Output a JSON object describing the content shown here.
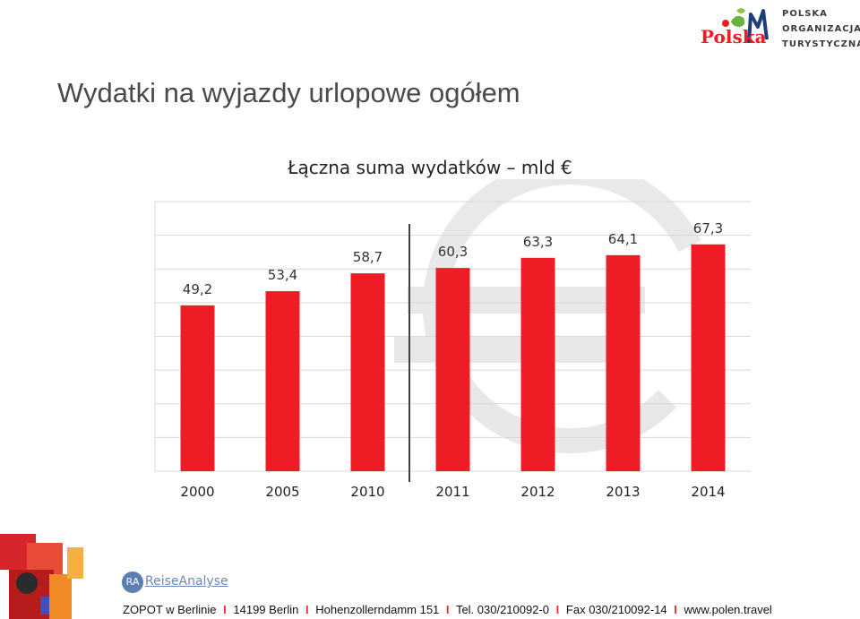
{
  "page": {
    "title": "Wydatki na wyjazdy urlopowe ogółem"
  },
  "logo": {
    "mark_text": "Polska",
    "lines": [
      "POLSKA",
      "ORGANIZACJA",
      "TURYSTYCZNA"
    ]
  },
  "ra_logo": {
    "badge": "RA",
    "name": "ReiseAnalyse"
  },
  "footer": {
    "parts": [
      "ZOPOT w Berlinie",
      "14199 Berlin",
      "Hohenzollerndamm 151",
      "Tel. 030/210092-0",
      "Fax 030/210092-14",
      "www.polen.travel"
    ],
    "separator": "I"
  },
  "colors": {
    "bar": "#ee1c25",
    "grid": "#d9d9d9",
    "divider": "#404040",
    "accent_red": "#e3342f"
  },
  "chart_data": {
    "type": "bar",
    "title": "Łączna suma wydatków – mld €",
    "categories": [
      "2000",
      "2005",
      "2010",
      "2011",
      "2012",
      "2013",
      "2014"
    ],
    "values": [
      49.2,
      53.4,
      58.7,
      60.3,
      63.3,
      64.1,
      67.3
    ],
    "value_labels": [
      "49,2",
      "53,4",
      "58,7",
      "60,3",
      "63,3",
      "64,1",
      "67,3"
    ],
    "xlabel": "",
    "ylabel": "",
    "ylim": [
      0,
      80
    ],
    "grid": true,
    "legend": "none"
  }
}
